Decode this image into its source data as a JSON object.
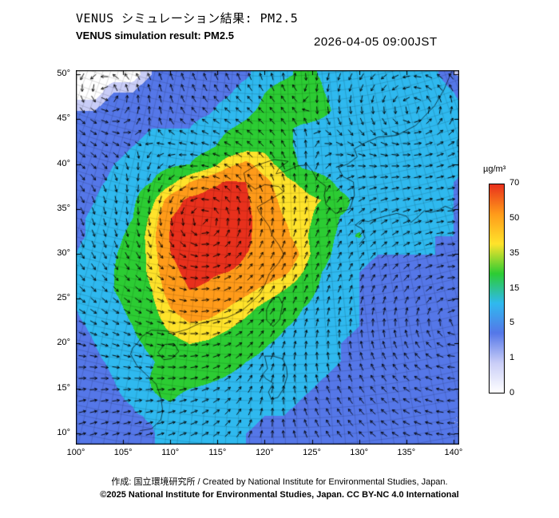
{
  "header": {
    "title_jp": "VENUS シミュレーション結果: PM2.5",
    "title_en": "VENUS simulation result: PM2.5",
    "datetime": "2026-04-05 09:00JST"
  },
  "footer": {
    "credit": "作成: 国立環境研究所 / Created by National Institute for Environmental Studies, Japan.",
    "copyright": "©2025 National Institute for Environmental Studies, Japan. CC BY-NC 4.0 International"
  },
  "colorbar": {
    "unit": "µg/m³",
    "tick_labels": [
      "70",
      "50",
      "35",
      "15",
      "5",
      "1",
      "0"
    ],
    "levels": [
      0,
      1,
      5,
      15,
      35,
      50,
      70
    ],
    "colors_bottom_to_top": [
      "#ffffff",
      "#c9cdf7",
      "#5577e8",
      "#2fb9ef",
      "#2ccc33",
      "#ffe32b",
      "#ff9b1a",
      "#e8301c"
    ]
  },
  "axes": {
    "lon_ticks": [
      "100°",
      "105°",
      "110°",
      "115°",
      "120°",
      "125°",
      "130°",
      "135°",
      "140°"
    ],
    "lon_values": [
      100,
      105,
      110,
      115,
      120,
      125,
      130,
      135,
      140
    ],
    "lat_ticks": [
      "50°",
      "45°",
      "40°",
      "35°",
      "30°",
      "25°",
      "20°",
      "15°",
      "10°"
    ],
    "lat_values": [
      50,
      45,
      40,
      35,
      30,
      25,
      20,
      15,
      10
    ],
    "lon_range": [
      100,
      140.6
    ],
    "lat_range": [
      8.75,
      50.45
    ]
  },
  "chart_data": {
    "type": "heatmap",
    "title": "VENUS simulation result: PM2.5",
    "unit": "µg/m³",
    "value_levels": [
      0,
      1,
      5,
      15,
      35,
      50,
      70
    ],
    "lon_start": 100,
    "lon_step": 2,
    "lat_start": 50,
    "lat_step": -2,
    "values": [
      [
        0,
        0,
        0,
        0,
        1,
        2,
        1,
        1,
        2,
        4,
        8,
        12,
        18,
        14,
        8,
        6,
        5,
        6,
        8,
        6,
        1,
        0
      ],
      [
        0,
        0,
        1,
        1,
        2,
        3,
        2,
        2,
        4,
        8,
        15,
        22,
        28,
        16,
        9,
        6,
        8,
        10,
        12,
        9,
        5,
        1
      ],
      [
        1,
        1,
        2,
        3,
        3,
        4,
        3,
        4,
        8,
        12,
        18,
        26,
        30,
        20,
        10,
        8,
        10,
        13,
        14,
        11,
        7,
        4
      ],
      [
        1,
        2,
        3,
        4,
        5,
        5,
        5,
        8,
        14,
        18,
        22,
        20,
        10,
        8,
        8,
        6,
        8,
        10,
        11,
        9,
        7,
        5
      ],
      [
        2,
        3,
        4,
        5,
        6,
        8,
        8,
        12,
        20,
        28,
        32,
        22,
        8,
        5,
        7,
        6,
        6,
        8,
        8,
        8,
        6,
        5
      ],
      [
        2,
        3,
        5,
        6,
        8,
        12,
        15,
        25,
        45,
        55,
        40,
        30,
        10,
        6,
        5,
        6,
        5,
        6,
        7,
        7,
        6,
        4
      ],
      [
        3,
        4,
        6,
        8,
        15,
        30,
        50,
        65,
        72,
        70,
        55,
        40,
        32,
        22,
        10,
        8,
        6,
        6,
        6,
        6,
        5,
        4
      ],
      [
        3,
        5,
        8,
        12,
        30,
        60,
        75,
        78,
        76,
        72,
        60,
        45,
        40,
        35,
        20,
        10,
        8,
        7,
        6,
        6,
        5,
        4
      ],
      [
        4,
        6,
        10,
        15,
        40,
        70,
        80,
        80,
        78,
        74,
        62,
        50,
        42,
        28,
        14,
        12,
        8,
        8,
        7,
        6,
        5,
        4
      ],
      [
        4,
        6,
        12,
        18,
        45,
        72,
        80,
        80,
        76,
        72,
        65,
        55,
        40,
        22,
        12,
        16,
        7,
        6,
        6,
        5,
        5,
        4
      ],
      [
        5,
        8,
        14,
        20,
        42,
        70,
        78,
        76,
        74,
        70,
        68,
        70,
        45,
        20,
        10,
        6,
        5,
        5,
        5,
        5,
        4,
        4
      ],
      [
        5,
        8,
        15,
        22,
        40,
        65,
        75,
        72,
        70,
        68,
        62,
        55,
        35,
        15,
        8,
        5,
        4,
        4,
        4,
        4,
        4,
        3
      ],
      [
        6,
        10,
        15,
        20,
        35,
        60,
        70,
        68,
        62,
        55,
        45,
        35,
        22,
        12,
        7,
        5,
        4,
        4,
        4,
        4,
        3,
        3
      ],
      [
        5,
        8,
        12,
        18,
        30,
        50,
        60,
        58,
        50,
        40,
        30,
        22,
        15,
        10,
        6,
        5,
        4,
        4,
        3,
        3,
        3,
        3
      ],
      [
        4,
        6,
        10,
        15,
        25,
        40,
        48,
        45,
        38,
        30,
        22,
        16,
        12,
        8,
        6,
        5,
        4,
        3,
        3,
        3,
        3,
        2
      ],
      [
        3,
        5,
        8,
        12,
        18,
        28,
        35,
        32,
        26,
        20,
        16,
        12,
        9,
        7,
        5,
        4,
        4,
        3,
        3,
        3,
        2,
        2
      ],
      [
        3,
        4,
        6,
        10,
        14,
        20,
        25,
        22,
        18,
        15,
        12,
        9,
        7,
        6,
        5,
        4,
        3,
        3,
        3,
        2,
        2,
        2
      ],
      [
        2,
        3,
        5,
        8,
        16,
        20,
        18,
        16,
        14,
        12,
        9,
        7,
        6,
        5,
        4,
        4,
        3,
        3,
        2,
        2,
        2,
        2
      ],
      [
        2,
        3,
        4,
        6,
        14,
        16,
        12,
        11,
        10,
        8,
        7,
        6,
        5,
        4,
        4,
        3,
        3,
        2,
        2,
        2,
        2,
        1
      ],
      [
        1,
        2,
        3,
        4,
        6,
        12,
        9,
        8,
        7,
        6,
        5,
        5,
        4,
        4,
        3,
        3,
        2,
        2,
        2,
        2,
        1,
        1
      ],
      [
        1,
        2,
        3,
        3,
        4,
        10,
        7,
        6,
        6,
        5,
        4,
        4,
        3,
        3,
        3,
        2,
        2,
        2,
        2,
        1,
        1,
        1
      ]
    ],
    "wind": {
      "base_u": 0.25,
      "base_v": 0.08,
      "vortices": [
        {
          "lon": 114,
          "lat": 33,
          "sigma": 7,
          "strength": 0.5
        },
        {
          "lon": 140,
          "lat": 23,
          "sigma": 9,
          "strength": -0.55
        },
        {
          "lon": 136,
          "lat": 45,
          "sigma": 5,
          "strength": 0.6
        },
        {
          "lon": 103,
          "lat": 48,
          "sigma": 6,
          "strength": 0.35
        }
      ]
    },
    "coastlines": [
      [
        [
          106.8,
          10.3
        ],
        [
          108,
          10.5
        ],
        [
          109,
          11.5
        ],
        [
          109.2,
          12.5
        ],
        [
          109,
          14
        ],
        [
          108.5,
          15.5
        ],
        [
          107.5,
          16.5
        ],
        [
          106.5,
          17.5
        ],
        [
          105.8,
          18.8
        ],
        [
          106,
          19.5
        ],
        [
          106.5,
          20
        ],
        [
          107,
          20.8
        ],
        [
          108,
          21.5
        ],
        [
          109.5,
          21.4
        ],
        [
          110.5,
          21.2
        ],
        [
          111.8,
          21.6
        ],
        [
          113,
          22.2
        ],
        [
          114.5,
          22.6
        ],
        [
          116,
          22.9
        ],
        [
          117.5,
          23.6
        ],
        [
          118.5,
          24.5
        ],
        [
          119.5,
          25.5
        ],
        [
          120,
          26.5
        ],
        [
          120.5,
          27.8
        ],
        [
          121.5,
          29
        ],
        [
          122,
          30
        ],
        [
          121.5,
          31
        ],
        [
          120.8,
          32
        ],
        [
          120.5,
          33
        ],
        [
          119.5,
          34.5
        ],
        [
          119.2,
          35.2
        ],
        [
          120.5,
          36
        ],
        [
          122,
          36.9
        ],
        [
          121.5,
          37.5
        ],
        [
          120,
          37.7
        ],
        [
          119,
          37.2
        ],
        [
          118,
          38
        ],
        [
          117.8,
          39
        ],
        [
          119,
          39.8
        ],
        [
          121,
          40.5
        ],
        [
          122.5,
          40.3
        ],
        [
          121.5,
          39.5
        ],
        [
          121.2,
          38.9
        ],
        [
          122.2,
          39.2
        ],
        [
          123.5,
          39.8
        ],
        [
          124.5,
          39.9
        ]
      ],
      [
        [
          124.5,
          39.9
        ],
        [
          125,
          39.3
        ],
        [
          125.5,
          38.3
        ],
        [
          126.5,
          37.5
        ],
        [
          126.3,
          36.5
        ],
        [
          126.5,
          35.5
        ],
        [
          127.5,
          34.5
        ],
        [
          129,
          35
        ],
        [
          129.5,
          36.5
        ],
        [
          129.4,
          38
        ],
        [
          128.3,
          38.6
        ],
        [
          127.8,
          39.6
        ],
        [
          128.8,
          40
        ],
        [
          129.8,
          40.8
        ],
        [
          129.5,
          41.7
        ],
        [
          130.5,
          42.3
        ],
        [
          132,
          43
        ],
        [
          134,
          43.2
        ],
        [
          136,
          44.3
        ],
        [
          138,
          46.5
        ],
        [
          139,
          48.3
        ],
        [
          139.8,
          50.3
        ]
      ],
      [
        [
          130,
          31
        ],
        [
          130.6,
          31.8
        ],
        [
          130.3,
          32.8
        ],
        [
          129.6,
          33.2
        ],
        [
          130.2,
          33.7
        ],
        [
          131,
          33.6
        ],
        [
          131.8,
          33.9
        ],
        [
          132.8,
          34.2
        ],
        [
          134,
          34.5
        ],
        [
          135,
          34.2
        ],
        [
          135.5,
          33.5
        ],
        [
          136.2,
          34.1
        ],
        [
          136.9,
          34.8
        ],
        [
          137.6,
          34.6
        ],
        [
          138.5,
          34.9
        ],
        [
          139.1,
          35.3
        ],
        [
          139.8,
          35
        ],
        [
          140.6,
          35.6
        ],
        [
          140.9,
          36.6
        ],
        [
          141,
          37.6
        ],
        [
          141.5,
          38.5
        ],
        [
          141.4,
          39.6
        ],
        [
          141.8,
          40.6
        ],
        [
          141.2,
          41.2
        ],
        [
          140.4,
          41.4
        ]
      ],
      [
        [
          140.4,
          42
        ],
        [
          141.6,
          42.6
        ],
        [
          142.6,
          42.2
        ],
        [
          143,
          42.8
        ],
        [
          142.7,
          43.7
        ],
        [
          141.9,
          44.6
        ],
        [
          141.5,
          43.9
        ],
        [
          140.8,
          43.3
        ],
        [
          140.4,
          42.6
        ],
        [
          140.4,
          42
        ]
      ],
      [
        [
          120.2,
          22.6
        ],
        [
          120.9,
          21.9
        ],
        [
          121.6,
          22.7
        ],
        [
          121.9,
          24.4
        ],
        [
          121.5,
          25.2
        ],
        [
          120.8,
          25.1
        ],
        [
          120.2,
          23.8
        ],
        [
          120.2,
          22.6
        ]
      ],
      [
        [
          108.7,
          19
        ],
        [
          109.3,
          18.2
        ],
        [
          110.1,
          18.3
        ],
        [
          110.9,
          19.1
        ],
        [
          110.4,
          20
        ],
        [
          109.4,
          19.9
        ],
        [
          108.7,
          19
        ]
      ],
      [
        [
          120,
          18.6
        ],
        [
          120.9,
          18.6
        ],
        [
          121.9,
          18.3
        ],
        [
          122.3,
          17.4
        ],
        [
          122.4,
          16.4
        ],
        [
          122,
          15
        ],
        [
          121.4,
          14
        ],
        [
          120.7,
          13.8
        ],
        [
          120.4,
          14.6
        ],
        [
          120.9,
          15.6
        ],
        [
          120.1,
          16.1
        ],
        [
          119.8,
          16.6
        ],
        [
          120.3,
          17.2
        ],
        [
          120,
          18.6
        ]
      ]
    ]
  }
}
